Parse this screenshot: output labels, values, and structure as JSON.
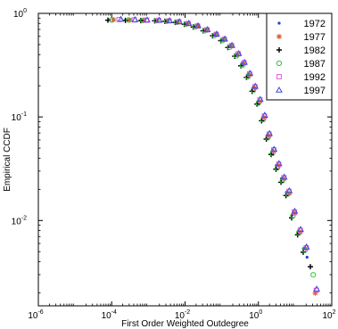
{
  "chart_data": {
    "type": "scatter",
    "title": "",
    "xlabel": "First Order Weighted Outdegree",
    "ylabel": "Empirical CCDF",
    "x_scale": "log",
    "y_scale": "log",
    "xlim": [
      1e-06,
      100
    ],
    "ylim": [
      0.0015,
      1
    ],
    "x_ticks": [
      {
        "value": 1e-06,
        "base": "10",
        "exp": "-6"
      },
      {
        "value": 0.0001,
        "base": "10",
        "exp": "-4"
      },
      {
        "value": 0.01,
        "base": "10",
        "exp": "-2"
      },
      {
        "value": 1,
        "base": "10",
        "exp": "0"
      },
      {
        "value": 100,
        "base": "10",
        "exp": "2"
      }
    ],
    "y_ticks": [
      {
        "value": 0.01,
        "base": "10",
        "exp": "-2"
      },
      {
        "value": 0.1,
        "base": "10",
        "exp": "-1"
      },
      {
        "value": 1,
        "base": "10",
        "exp": "0"
      }
    ],
    "grid": false,
    "legend_position": "top-right",
    "series": [
      {
        "name": "1972",
        "marker": "dot",
        "color": "#2a3bd6",
        "x": [
          8.44e-05,
          0.000244,
          0.00062,
          0.00159,
          0.00315,
          0.00589,
          0.0101,
          0.0176,
          0.0346,
          0.0636,
          0.104,
          0.16,
          0.244,
          0.359,
          0.504,
          0.707,
          0.968,
          1.3,
          1.72,
          2.34,
          3.08,
          4.23,
          5.82,
          8.39,
          12.0,
          16.9,
          21.2
        ],
        "y": [
          0.864,
          0.861,
          0.856,
          0.854,
          0.845,
          0.827,
          0.796,
          0.752,
          0.691,
          0.623,
          0.559,
          0.486,
          0.403,
          0.33,
          0.255,
          0.19,
          0.141,
          0.0982,
          0.0662,
          0.0464,
          0.0339,
          0.0253,
          0.0187,
          0.0114,
          0.00782,
          0.00535,
          0.00442
        ]
      },
      {
        "name": "1977",
        "marker": "star",
        "color": "#e0542a",
        "x": [
          0.000112,
          0.000305,
          0.00075,
          0.00173,
          0.00335,
          0.00639,
          0.0119,
          0.0226,
          0.0392,
          0.0712,
          0.117,
          0.185,
          0.274,
          0.395,
          0.567,
          0.787,
          1.08,
          1.43,
          1.96,
          2.55,
          3.51,
          4.82,
          6.94,
          9.69,
          13.9,
          19.3,
          35.4
        ],
        "y": [
          0.868,
          0.862,
          0.857,
          0.853,
          0.844,
          0.826,
          0.795,
          0.753,
          0.69,
          0.622,
          0.559,
          0.483,
          0.402,
          0.329,
          0.256,
          0.191,
          0.141,
          0.0984,
          0.0658,
          0.0464,
          0.0339,
          0.0253,
          0.0183,
          0.0118,
          0.00775,
          0.00535,
          0.00199
        ]
      },
      {
        "name": "1982",
        "marker": "plus",
        "color": "#000000",
        "x": [
          7.88e-05,
          0.000236,
          0.00062,
          0.00148,
          0.00281,
          0.00536,
          0.00955,
          0.0167,
          0.0309,
          0.0561,
          0.0946,
          0.147,
          0.226,
          0.332,
          0.472,
          0.671,
          0.913,
          1.22,
          1.64,
          2.22,
          3.01,
          4.13,
          5.64,
          8.05,
          11.7,
          16.7,
          26.1
        ],
        "y": [
          0.859,
          0.856,
          0.852,
          0.848,
          0.838,
          0.818,
          0.785,
          0.739,
          0.679,
          0.608,
          0.545,
          0.468,
          0.386,
          0.312,
          0.241,
          0.177,
          0.133,
          0.0918,
          0.0611,
          0.0434,
          0.0313,
          0.0234,
          0.0174,
          0.0106,
          0.00727,
          0.00494,
          0.00358
        ]
      },
      {
        "name": "1987",
        "marker": "circle",
        "color": "#33c23a",
        "x": [
          0.0001,
          0.000289,
          0.00071,
          0.00165,
          0.00317,
          0.00597,
          0.0106,
          0.0188,
          0.0344,
          0.0621,
          0.104,
          0.164,
          0.251,
          0.366,
          0.518,
          0.729,
          1.0,
          1.34,
          1.8,
          2.43,
          3.26,
          4.53,
          6.24,
          8.74,
          12.6,
          18.4,
          31.2
        ],
        "y": [
          0.864,
          0.863,
          0.855,
          0.85,
          0.84,
          0.82,
          0.787,
          0.742,
          0.681,
          0.611,
          0.547,
          0.471,
          0.389,
          0.315,
          0.244,
          0.181,
          0.136,
          0.0941,
          0.0629,
          0.0445,
          0.0322,
          0.0242,
          0.018,
          0.0111,
          0.00755,
          0.00515,
          0.00299
        ]
      },
      {
        "name": "1992",
        "marker": "square",
        "color": "#e05ae0",
        "x": [
          0.000159,
          0.000413,
          0.000894,
          0.00191,
          0.00366,
          0.00679,
          0.0122,
          0.0219,
          0.0396,
          0.0708,
          0.118,
          0.186,
          0.283,
          0.406,
          0.575,
          0.804,
          1.1,
          1.46,
          1.96,
          2.62,
          3.57,
          4.96,
          6.82,
          9.58,
          13.8,
          20.1,
          37.8
        ],
        "y": [
          0.872,
          0.866,
          0.86,
          0.856,
          0.847,
          0.829,
          0.798,
          0.756,
          0.694,
          0.627,
          0.563,
          0.488,
          0.407,
          0.334,
          0.261,
          0.196,
          0.146,
          0.102,
          0.0682,
          0.0481,
          0.035,
          0.0259,
          0.0191,
          0.0121,
          0.00805,
          0.00546,
          0.00212
        ]
      },
      {
        "name": "1997",
        "marker": "triangle",
        "color": "#3f4ad9",
        "x": [
          0.000178,
          0.000432,
          0.000925,
          0.00198,
          0.00378,
          0.00702,
          0.0126,
          0.0226,
          0.0407,
          0.0728,
          0.121,
          0.19,
          0.29,
          0.416,
          0.59,
          0.82,
          1.12,
          1.49,
          2.0,
          2.67,
          3.64,
          5.05,
          6.95,
          9.79,
          14.1,
          20.5,
          38.9
        ],
        "y": [
          0.878,
          0.87,
          0.864,
          0.86,
          0.85,
          0.833,
          0.803,
          0.76,
          0.699,
          0.632,
          0.567,
          0.492,
          0.41,
          0.337,
          0.264,
          0.198,
          0.148,
          0.104,
          0.0693,
          0.0488,
          0.0355,
          0.0263,
          0.0194,
          0.0123,
          0.00821,
          0.00556,
          0.00218
        ]
      }
    ]
  }
}
